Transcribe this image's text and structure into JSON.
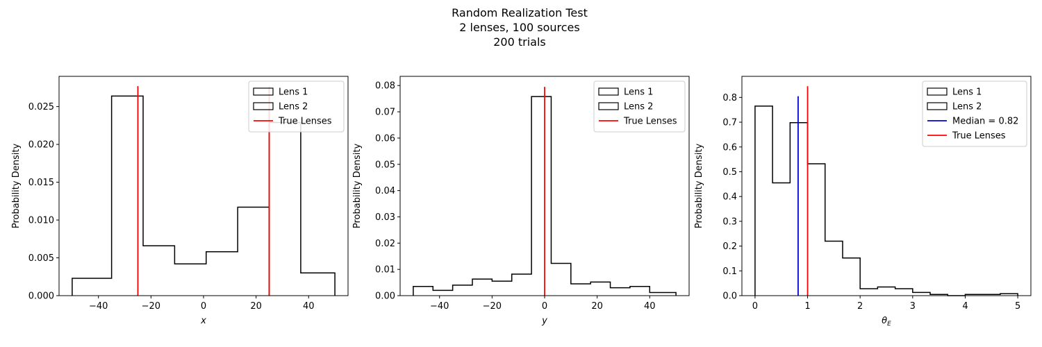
{
  "suptitle": {
    "line1": "Random Realization Test",
    "line2": "2 lenses, 100 sources",
    "line3": "200 trials"
  },
  "chart_data": [
    {
      "type": "histogram",
      "xlabel": "x",
      "ylabel": "Probability Density",
      "xlim": [
        -55,
        55
      ],
      "ylim": [
        0,
        0.029
      ],
      "xticks": [
        -40,
        -20,
        0,
        20,
        40
      ],
      "yticks": [
        0.0,
        0.005,
        0.01,
        0.015,
        0.02,
        0.025
      ],
      "ytick_decimals": 3,
      "legend_position": "upper right",
      "series": [
        {
          "name": "Lens 1",
          "style": "step",
          "color": "#000000",
          "edges": [
            -50,
            -35,
            -23,
            -11,
            1,
            13,
            25
          ],
          "values": [
            0.0023,
            0.0264,
            0.0066,
            0.0042,
            0.0058,
            0.0117
          ]
        },
        {
          "name": "Lens 2",
          "style": "step",
          "color": "#000000",
          "edges": [
            25,
            37,
            50
          ],
          "values": [
            0.0229,
            0.003
          ]
        }
      ],
      "vlines": [
        {
          "name": "True Lenses",
          "color": "#ff0000",
          "x": [
            -25,
            25
          ],
          "ymax": 0.0277
        }
      ]
    },
    {
      "type": "histogram",
      "xlabel": "y",
      "ylabel": "Probability Density",
      "xlim": [
        -55,
        55
      ],
      "ylim": [
        0,
        0.0835
      ],
      "xticks": [
        -40,
        -20,
        0,
        20,
        40
      ],
      "yticks": [
        0.0,
        0.01,
        0.02,
        0.03,
        0.04,
        0.05,
        0.06,
        0.07,
        0.08
      ],
      "ytick_decimals": 2,
      "legend_position": "upper right",
      "series": [
        {
          "name": "Lens 1",
          "style": "step",
          "color": "#000000",
          "edges": [
            -50,
            -42.5,
            -35,
            -27.5,
            -20,
            -12.5,
            -5,
            2.5,
            10,
            17.5,
            25,
            32.5,
            40,
            50
          ],
          "values": [
            0.0035,
            0.002,
            0.004,
            0.0063,
            0.0055,
            0.0082,
            0.0758,
            0.0123,
            0.0045,
            0.0052,
            0.003,
            0.0035,
            0.0012
          ]
        },
        {
          "name": "Lens 2",
          "style": "step",
          "color": "#000000",
          "edges": [],
          "values": []
        }
      ],
      "vlines": [
        {
          "name": "True Lenses",
          "color": "#ff0000",
          "x": [
            0
          ],
          "ymax": 0.0795
        }
      ]
    },
    {
      "type": "histogram",
      "xlabel": "θE",
      "ylabel": "Probability Density",
      "xlim": [
        -0.25,
        5.25
      ],
      "ylim": [
        0,
        0.885
      ],
      "xticks": [
        0,
        1,
        2,
        3,
        4,
        5
      ],
      "yticks": [
        0.0,
        0.1,
        0.2,
        0.3,
        0.4,
        0.5,
        0.6,
        0.7,
        0.8
      ],
      "ytick_decimals": 1,
      "legend_position": "upper right",
      "series": [
        {
          "name": "Lens 1",
          "style": "step",
          "color": "#000000",
          "edges": [
            0,
            0.333,
            0.667,
            1.0,
            1.333,
            1.667,
            2.0,
            2.333,
            2.667,
            3.0,
            3.333,
            3.667,
            4.0,
            4.333,
            4.667,
            5.0
          ],
          "values": [
            0.765,
            0.455,
            0.698,
            0.532,
            0.22,
            0.152,
            0.028,
            0.035,
            0.028,
            0.013,
            0.005,
            0.0,
            0.005,
            0.005,
            0.008
          ]
        },
        {
          "name": "Lens 2",
          "style": "step",
          "color": "#000000",
          "edges": [],
          "values": []
        }
      ],
      "vlines": [
        {
          "name": "Median = 0.82",
          "color": "#0000cc",
          "x": [
            0.82
          ],
          "ymax": 0.805
        },
        {
          "name": "True Lenses",
          "color": "#ff0000",
          "x": [
            1.0
          ],
          "ymax": 0.845
        }
      ]
    }
  ]
}
